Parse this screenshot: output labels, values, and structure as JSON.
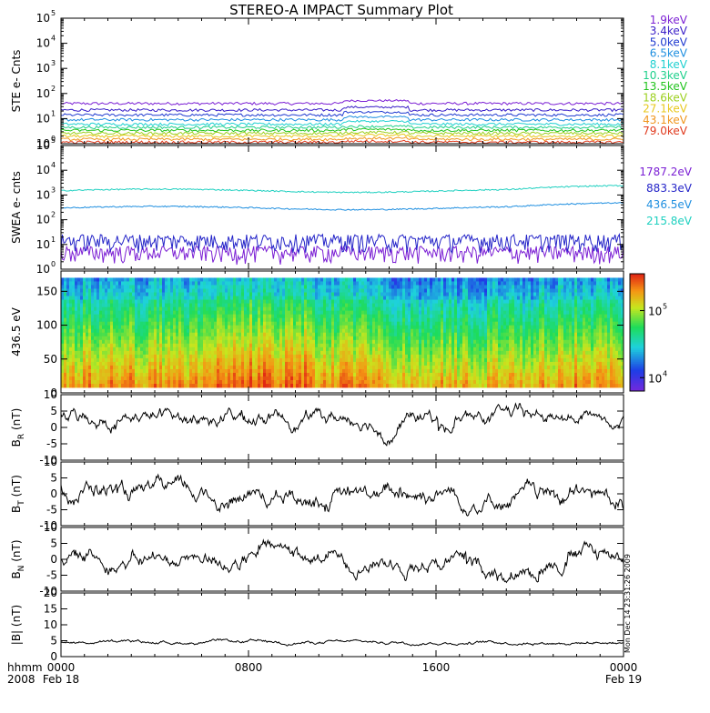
{
  "title": "STEREO-A IMPACT Summary Plot",
  "chart_data": [
    {
      "id": "ste",
      "type": "line",
      "ylabel": "STE e- Cnts",
      "yscale": "log",
      "ylim": [
        1,
        100000
      ],
      "series": [
        {
          "name": "1.9keV",
          "color": "#7b1fd4",
          "level": 40
        },
        {
          "name": "3.4keV",
          "color": "#3a1fc8",
          "level": 22
        },
        {
          "name": "5.0keV",
          "color": "#1f3ad0",
          "level": 14
        },
        {
          "name": "6.5keV",
          "color": "#1f8fe0",
          "level": 9
        },
        {
          "name": "8.1keV",
          "color": "#1fd0d0",
          "level": 6
        },
        {
          "name": "10.3keV",
          "color": "#1fd08c",
          "level": 4.5
        },
        {
          "name": "13.5keV",
          "color": "#22c41e",
          "level": 3.4
        },
        {
          "name": "18.6keV",
          "color": "#9cd01e",
          "level": 2.6
        },
        {
          "name": "27.1keV",
          "color": "#e8c81e",
          "level": 2.0
        },
        {
          "name": "43.1keV",
          "color": "#f0961e",
          "level": 1.5
        },
        {
          "name": "79.0keV",
          "color": "#e03a1e",
          "level": 1.15
        }
      ]
    },
    {
      "id": "swea",
      "type": "line",
      "ylabel": "SWEA e- cnts",
      "yscale": "log",
      "ylim": [
        1,
        100000
      ],
      "series": [
        {
          "name": "1787.2eV",
          "color": "#7b1fd4",
          "level": 5
        },
        {
          "name": "883.3eV",
          "color": "#2424c8",
          "level": 15
        },
        {
          "name": "436.5eV",
          "color": "#1f8fe0",
          "level": 300
        },
        {
          "name": "215.8eV",
          "color": "#1fd0c0",
          "level": 1500
        }
      ]
    },
    {
      "id": "pad",
      "type": "heatmap",
      "ylabel": "436.5 eV",
      "ylim": [
        0,
        180
      ],
      "yticks": [
        0,
        50,
        100,
        150
      ],
      "colorbar_ticks": [
        {
          "label": "10",
          "exp": "5",
          "value": 100000
        },
        {
          "label": "10",
          "exp": "4",
          "value": 10000
        }
      ]
    },
    {
      "id": "br",
      "type": "line",
      "ylabel_main": "B",
      "ylabel_sub": "R",
      "ylabel_unit": " (nT)",
      "ylim": [
        -10,
        10
      ],
      "yticks": [
        10,
        5,
        0,
        -5,
        -10
      ],
      "mean": 3
    },
    {
      "id": "bt",
      "type": "line",
      "ylabel_main": "B",
      "ylabel_sub": "T",
      "ylabel_unit": " (nT)",
      "ylim": [
        -10,
        10
      ],
      "yticks": [
        10,
        5,
        0,
        -5,
        -10
      ],
      "mean": -1
    },
    {
      "id": "bn",
      "type": "line",
      "ylabel_main": "B",
      "ylabel_sub": "N",
      "ylabel_unit": " (nT)",
      "ylim": [
        -10,
        10
      ],
      "yticks": [
        10,
        5,
        0,
        -5,
        -10
      ],
      "mean": 0
    },
    {
      "id": "bmag",
      "type": "line",
      "ylabel": "|B| (nT)",
      "ylim": [
        0,
        20
      ],
      "yticks": [
        20,
        15,
        10,
        5,
        0
      ],
      "mean": 4.5
    }
  ],
  "xaxis": {
    "row_label_1": "hhmm",
    "row_label_2": "2008",
    "ticks": [
      {
        "hhmm": "0000",
        "date": "Feb 18"
      },
      {
        "hhmm": "0800",
        "date": ""
      },
      {
        "hhmm": "1600",
        "date": ""
      },
      {
        "hhmm": "0000",
        "date": "Feb 19"
      }
    ]
  },
  "side_stamp": "Mon Dec 14 23:31:26 2009"
}
